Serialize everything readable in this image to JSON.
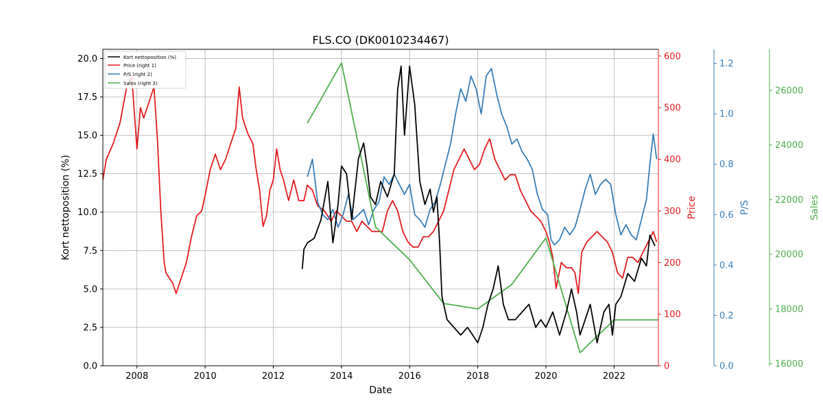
{
  "chart_data": {
    "type": "line",
    "title": "FLS.CO (DK0010234467)",
    "xlabel": "Date",
    "ylabel_left": "Kort nettoposition (%)",
    "ylabel_right1": "Price",
    "ylabel_right2": "P/S",
    "ylabel_right3": "Sales",
    "xlim": [
      2007.0,
      2023.3
    ],
    "x_ticks": [
      2008,
      2010,
      2012,
      2014,
      2016,
      2018,
      2020,
      2022
    ],
    "x_tick_labels": [
      "2008",
      "2010",
      "2012",
      "2014",
      "2016",
      "2018",
      "2020",
      "2022"
    ],
    "grid": true,
    "legend_position": "top-left",
    "axes": {
      "left": {
        "label": "Kort nettoposition (%)",
        "ylim": [
          0,
          20.6
        ],
        "ticks": [
          0,
          2.5,
          5,
          7.5,
          10,
          12.5,
          15,
          17.5,
          20
        ],
        "tick_labels": [
          "0.0",
          "2.5",
          "5.0",
          "7.5",
          "10.0",
          "12.5",
          "15.0",
          "17.5",
          "20.0"
        ],
        "color": "#000000"
      },
      "right1": {
        "label": "Price",
        "ylim": [
          0,
          613
        ],
        "ticks": [
          0,
          100,
          200,
          300,
          400,
          500,
          600
        ],
        "tick_labels": [
          "0",
          "100",
          "200",
          "300",
          "400",
          "500",
          "600"
        ],
        "color": "#e41a1c"
      },
      "right2": {
        "label": "P/S",
        "ylim": [
          0,
          1.256
        ],
        "ticks": [
          0,
          0.2,
          0.4,
          0.6,
          0.8,
          1.0,
          1.2
        ],
        "tick_labels": [
          "0.0",
          "0.2",
          "0.4",
          "0.6",
          "0.8",
          "1.0",
          "1.2"
        ],
        "color": "#377eb8"
      },
      "right3": {
        "label": "Sales",
        "ylim": [
          15920,
          27500
        ],
        "ticks": [
          16000,
          18000,
          20000,
          22000,
          24000,
          26000
        ],
        "tick_labels": [
          "16000",
          "18000",
          "20000",
          "22000",
          "24000",
          "26000"
        ],
        "color": "#4daf4a"
      }
    },
    "series": [
      {
        "name": "Kort nettoposition (%)",
        "axis": "left",
        "color": "#000000",
        "x": [
          2012.85,
          2012.9,
          2013.0,
          2013.2,
          2013.4,
          2013.6,
          2013.75,
          2013.9,
          2014.0,
          2014.15,
          2014.3,
          2014.5,
          2014.65,
          2014.75,
          2014.85,
          2015.0,
          2015.15,
          2015.35,
          2015.55,
          2015.65,
          2015.75,
          2015.85,
          2016.0,
          2016.15,
          2016.3,
          2016.45,
          2016.6,
          2016.7,
          2016.8,
          2016.88,
          2016.95,
          2017.1,
          2017.3,
          2017.5,
          2017.7,
          2017.85,
          2018.0,
          2018.15,
          2018.3,
          2018.45,
          2018.6,
          2018.75,
          2018.9,
          2019.1,
          2019.3,
          2019.5,
          2019.7,
          2019.85,
          2020.0,
          2020.2,
          2020.4,
          2020.6,
          2020.75,
          2020.9,
          2021.0,
          2021.15,
          2021.3,
          2021.5,
          2021.7,
          2021.85,
          2021.95,
          2022.05,
          2022.2,
          2022.4,
          2022.6,
          2022.8,
          2022.95,
          2023.05,
          2023.2
        ],
        "y": [
          6.3,
          7.6,
          8.0,
          8.3,
          9.5,
          12.0,
          8.0,
          10.5,
          13.0,
          12.5,
          9.5,
          13.5,
          14.5,
          13.0,
          11.0,
          10.5,
          12.0,
          11.0,
          12.5,
          18.0,
          19.5,
          15.0,
          19.5,
          17.0,
          12.0,
          10.5,
          11.5,
          10.0,
          11.0,
          8.0,
          4.5,
          3.0,
          2.5,
          2.0,
          2.5,
          2.0,
          1.5,
          2.5,
          4.0,
          5.0,
          6.5,
          4.0,
          3.0,
          3.0,
          3.5,
          4.0,
          2.5,
          3.0,
          2.5,
          3.5,
          2.0,
          3.5,
          5.0,
          3.5,
          2.0,
          3.0,
          4.0,
          1.5,
          3.5,
          4.0,
          2.0,
          4.0,
          4.5,
          6.0,
          5.5,
          7.0,
          6.5,
          8.5,
          7.8
        ]
      },
      {
        "name": "Price (right 1)",
        "axis": "right1",
        "color": "#e41a1c",
        "x": [
          2007.0,
          2007.1,
          2007.3,
          2007.5,
          2007.7,
          2007.85,
          2008.0,
          2008.1,
          2008.2,
          2008.35,
          2008.5,
          2008.6,
          2008.7,
          2008.8,
          2008.85,
          2008.95,
          2009.05,
          2009.15,
          2009.3,
          2009.45,
          2009.6,
          2009.75,
          2009.9,
          2010.0,
          2010.15,
          2010.3,
          2010.45,
          2010.6,
          2010.75,
          2010.9,
          2011.0,
          2011.1,
          2011.25,
          2011.4,
          2011.5,
          2011.6,
          2011.7,
          2011.8,
          2011.9,
          2012.0,
          2012.1,
          2012.2,
          2012.3,
          2012.45,
          2012.6,
          2012.75,
          2012.9,
          2013.0,
          2013.15,
          2013.3,
          2013.5,
          2013.7,
          2013.85,
          2014.0,
          2014.15,
          2014.3,
          2014.45,
          2014.6,
          2014.75,
          2014.9,
          2015.05,
          2015.2,
          2015.35,
          2015.5,
          2015.65,
          2015.8,
          2015.95,
          2016.1,
          2016.25,
          2016.4,
          2016.55,
          2016.7,
          2016.85,
          2017.0,
          2017.15,
          2017.3,
          2017.45,
          2017.6,
          2017.75,
          2017.9,
          2018.05,
          2018.2,
          2018.35,
          2018.5,
          2018.65,
          2018.8,
          2018.95,
          2019.1,
          2019.25,
          2019.4,
          2019.55,
          2019.7,
          2019.85,
          2020.0,
          2020.1,
          2020.2,
          2020.3,
          2020.45,
          2020.6,
          2020.75,
          2020.85,
          2020.95,
          2021.05,
          2021.2,
          2021.35,
          2021.5,
          2021.65,
          2021.8,
          2021.95,
          2022.1,
          2022.25,
          2022.4,
          2022.55,
          2022.7,
          2022.85,
          2023.0,
          2023.15,
          2023.25
        ],
        "y": [
          360,
          400,
          430,
          470,
          540,
          560,
          420,
          500,
          480,
          510,
          540,
          440,
          300,
          200,
          180,
          170,
          160,
          140,
          170,
          200,
          250,
          290,
          300,
          330,
          380,
          410,
          380,
          400,
          430,
          460,
          540,
          480,
          450,
          430,
          380,
          340,
          270,
          290,
          340,
          360,
          420,
          380,
          360,
          320,
          360,
          320,
          320,
          350,
          340,
          310,
          300,
          280,
          300,
          290,
          280,
          280,
          260,
          280,
          270,
          260,
          260,
          260,
          300,
          320,
          300,
          260,
          240,
          230,
          230,
          250,
          250,
          260,
          280,
          300,
          340,
          380,
          400,
          420,
          400,
          380,
          390,
          420,
          440,
          400,
          380,
          360,
          370,
          370,
          340,
          320,
          300,
          290,
          280,
          260,
          240,
          210,
          150,
          200,
          190,
          190,
          180,
          140,
          220,
          240,
          250,
          260,
          250,
          240,
          220,
          180,
          170,
          210,
          210,
          200,
          220,
          240,
          260,
          240
        ]
      },
      {
        "name": "P/S (right 2)",
        "axis": "right2",
        "color": "#377eb8",
        "x": [
          2013.0,
          2013.15,
          2013.3,
          2013.45,
          2013.6,
          2013.75,
          2013.9,
          2014.05,
          2014.2,
          2014.35,
          2014.5,
          2014.65,
          2014.8,
          2014.95,
          2015.1,
          2015.25,
          2015.4,
          2015.55,
          2015.7,
          2015.85,
          2016.0,
          2016.15,
          2016.3,
          2016.45,
          2016.6,
          2016.75,
          2016.9,
          2017.05,
          2017.2,
          2017.35,
          2017.5,
          2017.65,
          2017.8,
          2017.95,
          2018.1,
          2018.25,
          2018.4,
          2018.55,
          2018.7,
          2018.85,
          2019.0,
          2019.15,
          2019.3,
          2019.45,
          2019.6,
          2019.75,
          2019.9,
          2020.05,
          2020.15,
          2020.25,
          2020.4,
          2020.55,
          2020.7,
          2020.85,
          2021.0,
          2021.15,
          2021.3,
          2021.45,
          2021.6,
          2021.75,
          2021.9,
          2022.05,
          2022.2,
          2022.35,
          2022.5,
          2022.65,
          2022.8,
          2022.95,
          2023.05,
          2023.15,
          2023.25
        ],
        "y": [
          0.75,
          0.82,
          0.65,
          0.6,
          0.58,
          0.62,
          0.55,
          0.6,
          0.68,
          0.58,
          0.6,
          0.62,
          0.56,
          0.62,
          0.65,
          0.75,
          0.72,
          0.76,
          0.72,
          0.68,
          0.72,
          0.6,
          0.58,
          0.55,
          0.62,
          0.65,
          0.72,
          0.8,
          0.88,
          1.0,
          1.1,
          1.05,
          1.15,
          1.1,
          1.0,
          1.15,
          1.18,
          1.08,
          1.0,
          0.95,
          0.88,
          0.9,
          0.85,
          0.82,
          0.78,
          0.68,
          0.62,
          0.6,
          0.5,
          0.48,
          0.5,
          0.55,
          0.52,
          0.55,
          0.62,
          0.7,
          0.76,
          0.68,
          0.72,
          0.74,
          0.72,
          0.6,
          0.52,
          0.56,
          0.52,
          0.5,
          0.58,
          0.66,
          0.8,
          0.92,
          0.82
        ]
      },
      {
        "name": "Sales (right 3)",
        "axis": "right3",
        "color": "#4daf4a",
        "x": [
          2013.0,
          2014.0,
          2015.0,
          2016.0,
          2017.0,
          2018.0,
          2019.0,
          2020.0,
          2021.0,
          2022.0,
          2023.3
        ],
        "y": [
          24800,
          27000,
          21000,
          19800,
          18200,
          18000,
          18900,
          20600,
          16400,
          17600,
          17600
        ]
      }
    ]
  }
}
